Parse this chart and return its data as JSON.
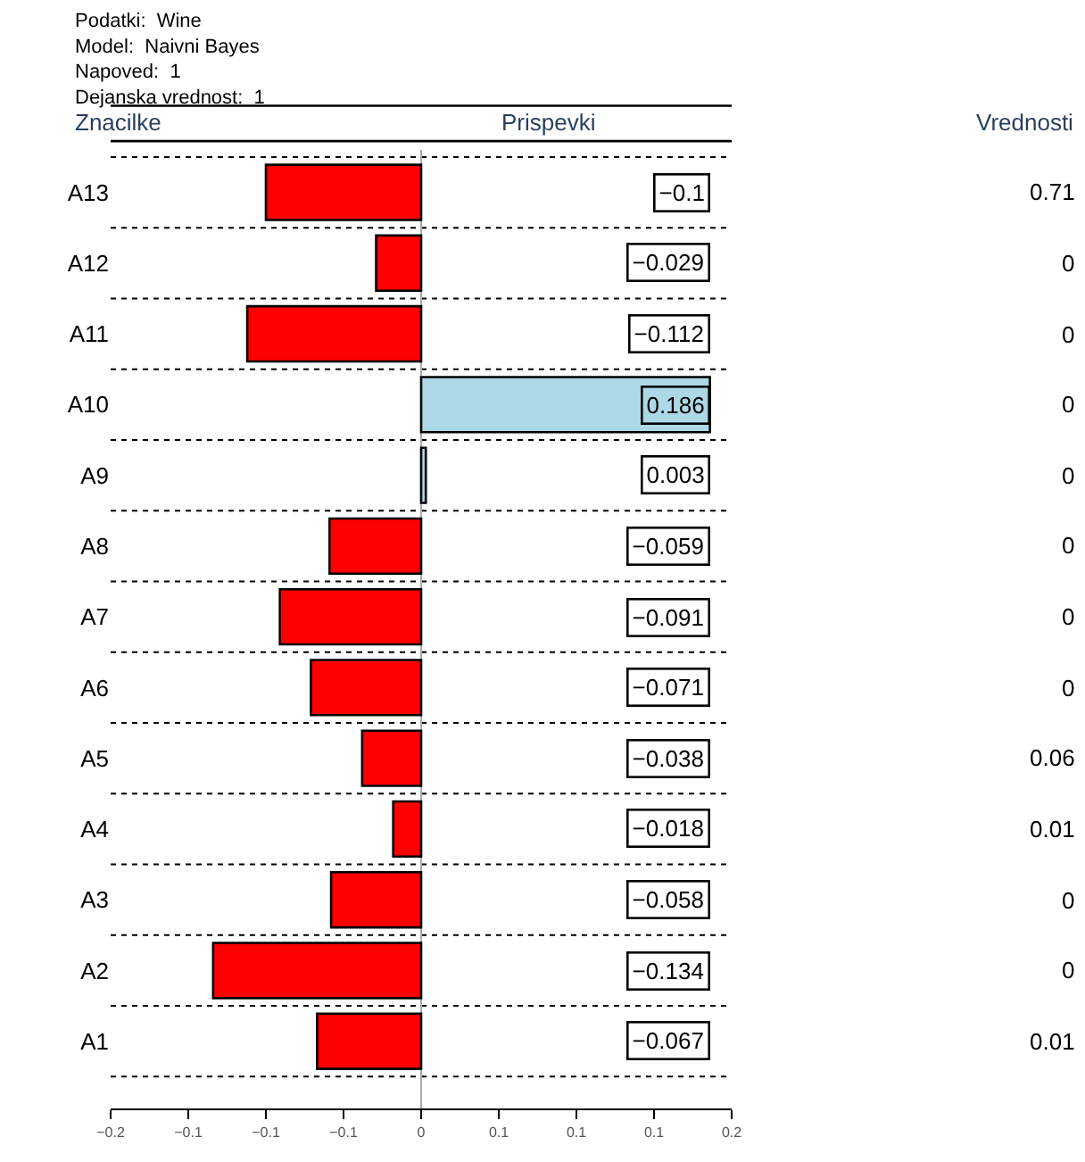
{
  "chart_data": {
    "type": "bar",
    "orientation": "horizontal",
    "title": "Podatki:  Wine\nModel:  Naivni Bayes\nNapoved:  1\nDejanska vrednost:  1",
    "ylabel": "Znacilke",
    "xlabel": "Prispevki",
    "annotations": [
      "Vrednosti"
    ],
    "categories": [
      "A13",
      "A12",
      "A11",
      "A10",
      "A9",
      "A8",
      "A7",
      "A6",
      "A5",
      "A4",
      "A3",
      "A2",
      "A1"
    ],
    "y2_categories": [
      "0.71",
      "0",
      "0",
      "0",
      "0",
      "0",
      "0",
      "0",
      "0.06",
      "0.01",
      "0",
      "0",
      "0.01"
    ],
    "values": [
      -0.1,
      -0.029,
      -0.112,
      0.186,
      0.003,
      -0.059,
      -0.091,
      -0.071,
      -0.038,
      -0.018,
      -0.058,
      -0.134,
      -0.067
    ],
    "colors": [
      "#ff0000",
      "#ff0000",
      "#ff0000",
      "#add8e6",
      "#add8e6",
      "#ff0000",
      "#ff0000",
      "#ff0000",
      "#ff0000",
      "#ff0000",
      "#ff0000",
      "#ff0000",
      "#ff0000"
    ],
    "data_labels": true,
    "xlim": [
      -0.2,
      0.2
    ],
    "xticks": [
      {
        "value": -0.2,
        "label": "−0.2"
      },
      {
        "value": -0.15,
        "label": "−0.1"
      },
      {
        "value": -0.1,
        "label": "−0.1"
      },
      {
        "value": -0.05,
        "label": "−0.1"
      },
      {
        "value": 0,
        "label": "0"
      },
      {
        "value": 0.05,
        "label": "0.1"
      },
      {
        "value": 0.1,
        "label": "0.1"
      },
      {
        "value": 0.15,
        "label": "0.1"
      },
      {
        "value": 0.2,
        "label": "0.2"
      }
    ],
    "grid": "y",
    "legend": false
  }
}
